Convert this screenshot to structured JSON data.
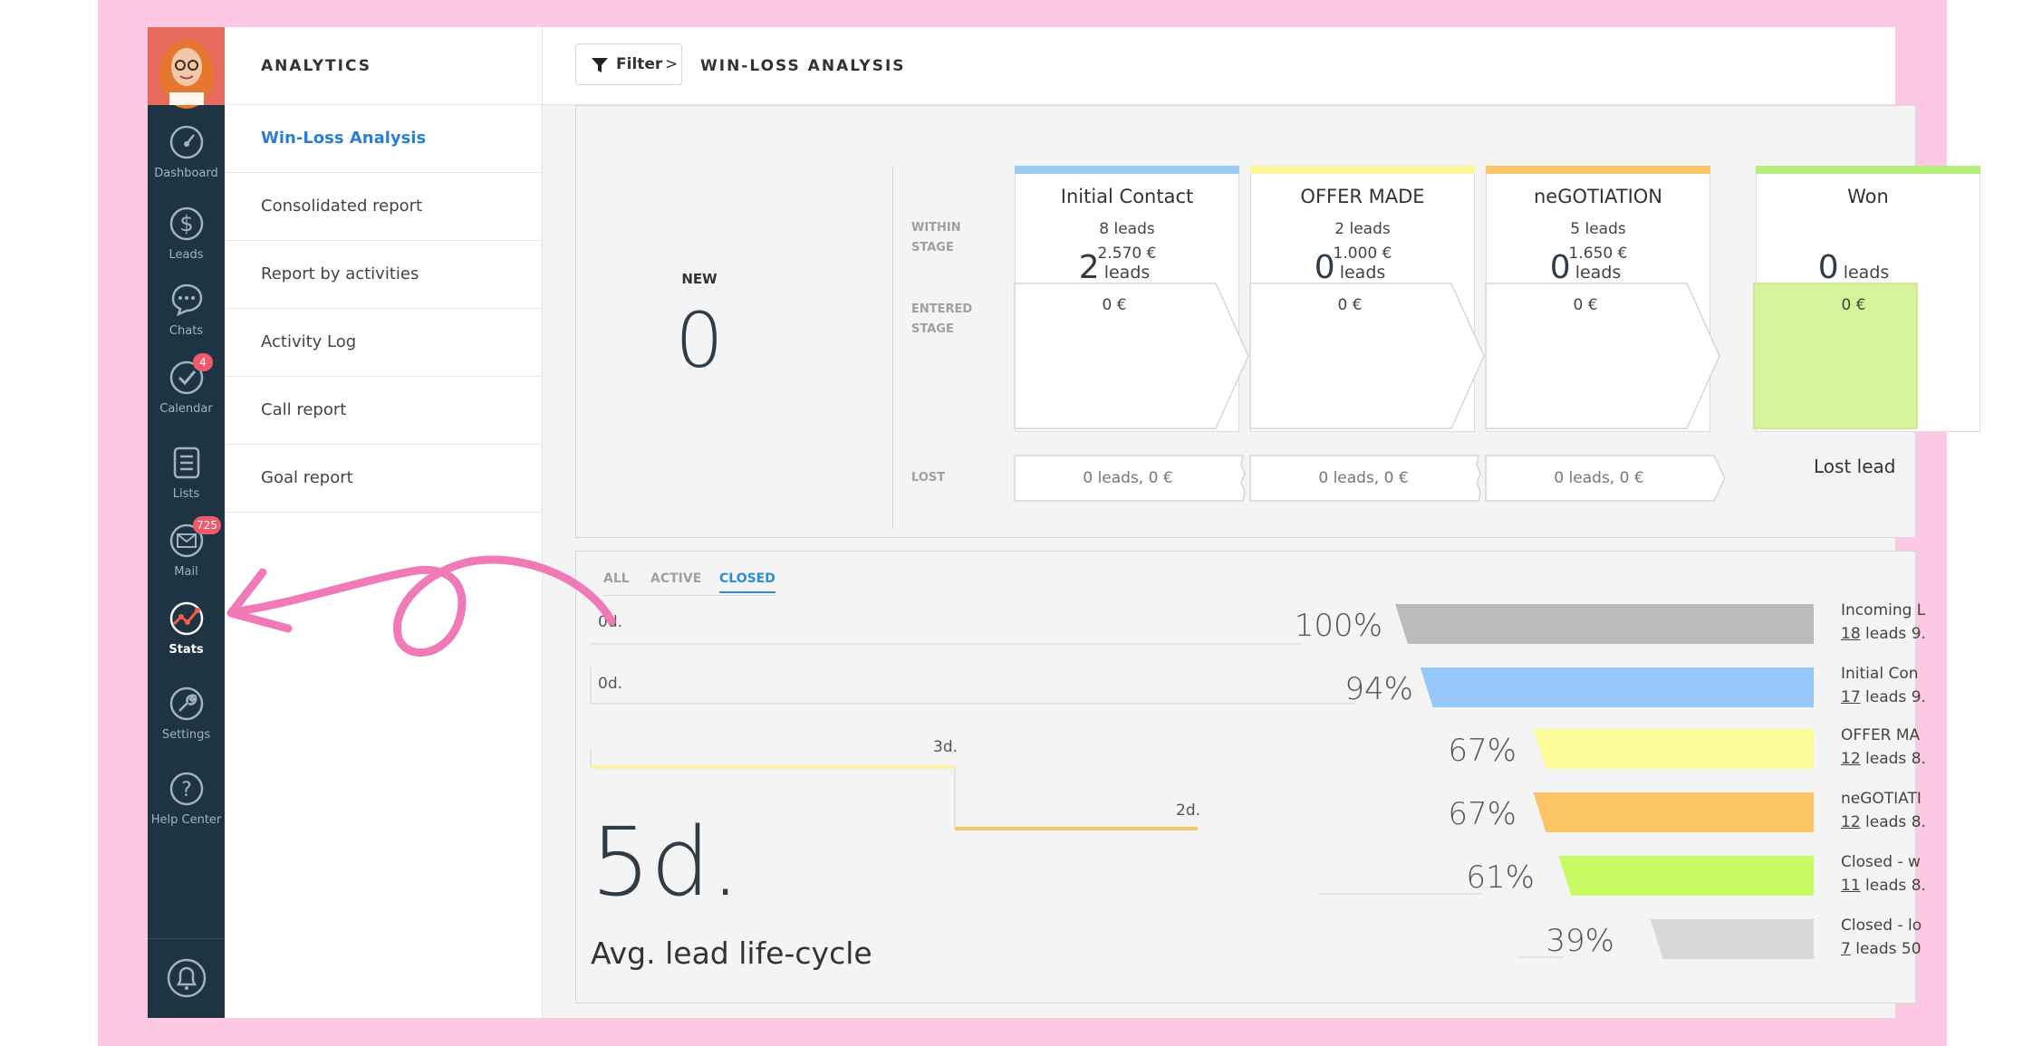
{
  "rail": {
    "items": [
      {
        "label": "Dashboard",
        "icon": "gauge-icon"
      },
      {
        "label": "Leads",
        "icon": "dollar-icon"
      },
      {
        "label": "Chats",
        "icon": "chat-bubble-icon"
      },
      {
        "label": "Calendar",
        "icon": "check-circle-icon",
        "badge": "4"
      },
      {
        "label": "Lists",
        "icon": "list-icon"
      },
      {
        "label": "Mail",
        "icon": "envelope-icon",
        "badge": "725"
      },
      {
        "label": "Stats",
        "icon": "chart-icon"
      },
      {
        "label": "Settings",
        "icon": "wrench-icon"
      },
      {
        "label": "Help Center",
        "icon": "question-icon"
      }
    ]
  },
  "sidenav": {
    "title": "ANALYTICS",
    "items": [
      "Win-Loss Analysis",
      "Consolidated report",
      "Report by activities",
      "Activity Log",
      "Call report",
      "Goal report"
    ]
  },
  "topbar": {
    "filter_label": "Filter",
    "filter_chevron": ">",
    "title": "WIN-LOSS ANALYSIS"
  },
  "pipeline": {
    "new_label": "NEW",
    "new_value": "0",
    "row_labels": {
      "within": "WITHIN STAGE",
      "entered": "ENTERED STAGE",
      "lost": "LOST"
    },
    "stages": [
      {
        "name": "Initial Contact",
        "leads": "8 leads",
        "amount": "2.570 €",
        "entered_count": "2",
        "entered_unit": "leads",
        "entered_amount": "0 €",
        "lost": "0 leads, 0 €",
        "color": "#9ecbf5"
      },
      {
        "name": "OFFER MADE",
        "leads": "2 leads",
        "amount": "1.000 €",
        "entered_count": "0",
        "entered_unit": "leads",
        "entered_amount": "0 €",
        "lost": "0 leads, 0 €",
        "color": "#fbf69a"
      },
      {
        "name": "neGOTIATION",
        "leads": "5 leads",
        "amount": "1.650 €",
        "entered_count": "0",
        "entered_unit": "leads",
        "entered_amount": "0 €",
        "lost": "0 leads, 0 €",
        "color": "#fbc66a"
      },
      {
        "name": "Won",
        "leads": "",
        "amount": "",
        "entered_count": "0",
        "entered_unit": "leads",
        "entered_amount": "0 €",
        "lost": "",
        "color": "#b7ef7c"
      }
    ],
    "lost_side": "Lost lead"
  },
  "funnel": {
    "tabs": [
      "ALL",
      "ACTIVE",
      "CLOSED"
    ],
    "active_tab": "CLOSED",
    "durations": [
      "0d.",
      "0d.",
      "3d.",
      "2d."
    ],
    "rows": [
      {
        "pct": "100%",
        "label": "Incoming L",
        "count": "18",
        "rest": " leads 9.",
        "color": "#bbbbbb",
        "fraction": 1.0
      },
      {
        "pct": "94%",
        "label": "Initial Con",
        "count": "17",
        "rest": " leads 9.",
        "color": "#95c8f8",
        "fraction": 0.94
      },
      {
        "pct": "67%",
        "label": "OFFER MA",
        "count": "12",
        "rest": " leads 8.",
        "color": "#fdfb98",
        "fraction": 0.67
      },
      {
        "pct": "67%",
        "label": "neGOTIATI",
        "count": "12",
        "rest": " leads 8.",
        "color": "#fcc667",
        "fraction": 0.67
      },
      {
        "pct": "61%",
        "label": "Closed - w",
        "count": "11",
        "rest": " leads 8.",
        "color": "#c8fc64",
        "fraction": 0.61
      },
      {
        "pct": "39%",
        "label": "Closed - lo",
        "count": "7",
        "rest": " leads 50",
        "color": "#d7d8da",
        "fraction": 0.39
      }
    ],
    "avg_value": "5d.",
    "avg_label": "Avg. lead life-cycle"
  },
  "colors": {
    "frame": "#fdc8e4",
    "rail": "#1f3443",
    "accent": "#2a7fd4",
    "arrow": "#f07ab8"
  }
}
